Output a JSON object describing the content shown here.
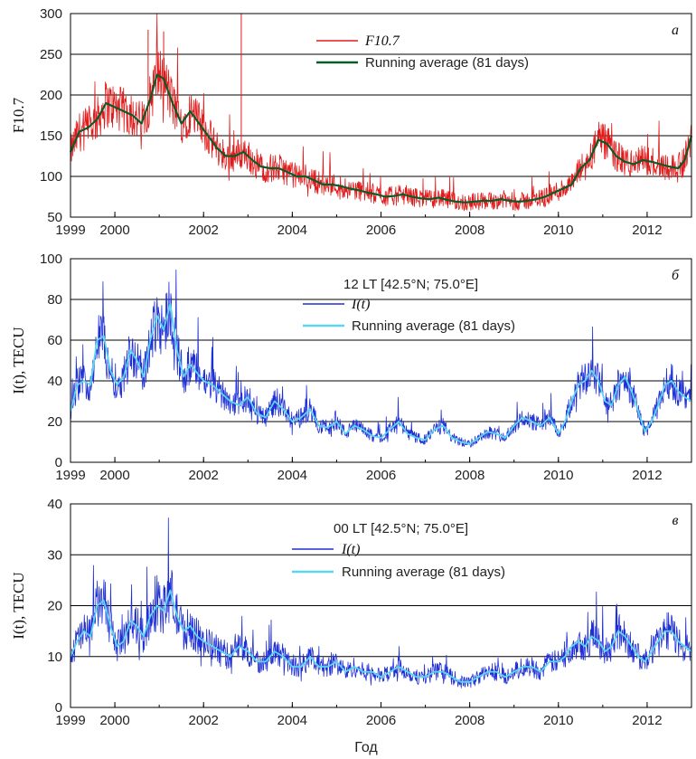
{
  "xlabel": "Год",
  "colors": {
    "f107_daily": "#e01a1a",
    "f107_avg": "#0a5a2a",
    "tec_daily": "#1f2fd6",
    "tec_avg": "#5ad6f0",
    "grid": "#000000",
    "axis": "#000000"
  },
  "chart_data": [
    {
      "type": "line",
      "panel_label": "а",
      "ylabel": "F10.7",
      "subtitle": "",
      "xlim": [
        1999,
        2013
      ],
      "ylim": [
        50,
        300
      ],
      "xticks": [
        "1999",
        "2000",
        "2002",
        "2004",
        "2006",
        "2008",
        "2010",
        "2012"
      ],
      "yticks": [
        "50",
        "100",
        "150",
        "200",
        "250",
        "300"
      ],
      "legend": [
        "F10.7",
        "Running average (81 days)"
      ],
      "legend_position": "top-center",
      "series": [
        {
          "name": "F10.7",
          "style": "daily"
        },
        {
          "name": "Running average (81 days)",
          "style": "smooth",
          "x": [
            1999.0,
            1999.2,
            1999.4,
            1999.6,
            1999.8,
            2000.0,
            2000.2,
            2000.4,
            2000.6,
            2000.8,
            2000.95,
            2001.1,
            2001.3,
            2001.5,
            2001.7,
            2001.9,
            2002.1,
            2002.3,
            2002.5,
            2002.7,
            2002.9,
            2003.1,
            2003.3,
            2003.5,
            2003.7,
            2003.9,
            2004.1,
            2004.3,
            2004.5,
            2004.7,
            2004.9,
            2005.1,
            2005.3,
            2005.5,
            2005.7,
            2005.9,
            2006.1,
            2006.3,
            2006.5,
            2006.7,
            2006.9,
            2007.1,
            2007.3,
            2007.5,
            2007.7,
            2007.9,
            2008.1,
            2008.3,
            2008.5,
            2008.7,
            2008.9,
            2009.1,
            2009.3,
            2009.5,
            2009.7,
            2009.9,
            2010.1,
            2010.3,
            2010.5,
            2010.7,
            2010.9,
            2011.1,
            2011.3,
            2011.5,
            2011.7,
            2011.9,
            2012.1,
            2012.3,
            2012.5,
            2012.7,
            2012.85,
            2013.0
          ],
          "y": [
            130,
            155,
            160,
            170,
            190,
            185,
            180,
            175,
            165,
            195,
            225,
            220,
            190,
            165,
            180,
            165,
            150,
            135,
            125,
            125,
            130,
            120,
            112,
            110,
            110,
            105,
            100,
            100,
            95,
            90,
            90,
            88,
            85,
            83,
            80,
            78,
            75,
            76,
            78,
            75,
            73,
            72,
            74,
            71,
            69,
            68,
            69,
            70,
            70,
            72,
            70,
            69,
            70,
            72,
            75,
            80,
            85,
            90,
            110,
            120,
            145,
            140,
            125,
            118,
            115,
            120,
            118,
            115,
            112,
            110,
            120,
            150
          ]
        }
      ]
    },
    {
      "type": "line",
      "panel_label": "б",
      "ylabel": "I(t), TECU",
      "subtitle": "12 LT [42.5°N; 75.0°E]",
      "xlim": [
        1999,
        2013
      ],
      "ylim": [
        0,
        100
      ],
      "xticks": [
        "1999",
        "2000",
        "2002",
        "2004",
        "2006",
        "2008",
        "2010",
        "2012"
      ],
      "yticks": [
        "0",
        "20",
        "40",
        "60",
        "80",
        "100"
      ],
      "legend": [
        "I(t)",
        "Running average (81 days)"
      ],
      "legend_position": "top-center",
      "series": [
        {
          "name": "I(t)",
          "style": "daily"
        },
        {
          "name": "Running average (81 days)",
          "style": "smooth",
          "x": [
            1999.0,
            1999.15,
            1999.3,
            1999.45,
            1999.6,
            1999.75,
            1999.9,
            2000.05,
            2000.2,
            2000.35,
            2000.5,
            2000.65,
            2000.8,
            2000.95,
            2001.1,
            2001.25,
            2001.4,
            2001.55,
            2001.7,
            2001.85,
            2002.0,
            2002.2,
            2002.4,
            2002.6,
            2002.8,
            2003.0,
            2003.2,
            2003.4,
            2003.6,
            2003.8,
            2004.0,
            2004.2,
            2004.4,
            2004.6,
            2004.8,
            2005.0,
            2005.2,
            2005.4,
            2005.6,
            2005.8,
            2006.0,
            2006.2,
            2006.4,
            2006.6,
            2006.8,
            2007.0,
            2007.2,
            2007.4,
            2007.6,
            2007.8,
            2008.0,
            2008.2,
            2008.4,
            2008.6,
            2008.8,
            2009.0,
            2009.2,
            2009.4,
            2009.6,
            2009.8,
            2010.0,
            2010.15,
            2010.3,
            2010.45,
            2010.6,
            2010.75,
            2010.9,
            2011.05,
            2011.2,
            2011.35,
            2011.5,
            2011.65,
            2011.8,
            2011.95,
            2012.1,
            2012.25,
            2012.4,
            2012.55,
            2012.7,
            2012.85,
            2013.0
          ],
          "y": [
            25,
            38,
            40,
            38,
            60,
            62,
            45,
            38,
            42,
            55,
            50,
            42,
            60,
            72,
            65,
            78,
            55,
            42,
            48,
            44,
            40,
            38,
            34,
            30,
            28,
            32,
            24,
            22,
            30,
            26,
            20,
            22,
            26,
            18,
            17,
            20,
            14,
            18,
            16,
            13,
            12,
            16,
            20,
            14,
            12,
            11,
            16,
            18,
            12,
            10,
            9,
            12,
            15,
            14,
            12,
            18,
            22,
            20,
            18,
            22,
            14,
            20,
            30,
            38,
            40,
            45,
            40,
            30,
            28,
            38,
            42,
            35,
            25,
            15,
            20,
            28,
            38,
            40,
            35,
            32,
            30
          ]
        }
      ]
    },
    {
      "type": "line",
      "panel_label": "в",
      "ylabel": "I(t), TECU",
      "subtitle": "00 LT [42.5°N; 75.0°E]",
      "xlim": [
        1999,
        2013
      ],
      "ylim": [
        0,
        40
      ],
      "xticks": [
        "1999",
        "2000",
        "2002",
        "2004",
        "2006",
        "2008",
        "2010",
        "2012"
      ],
      "yticks": [
        "0",
        "10",
        "20",
        "30",
        "40"
      ],
      "legend": [
        "I(t)",
        "Running average (81 days)"
      ],
      "legend_position": "top-center",
      "series": [
        {
          "name": "I(t)",
          "style": "daily"
        },
        {
          "name": "Running average (81 days)",
          "style": "smooth",
          "x": [
            1999.0,
            1999.15,
            1999.3,
            1999.45,
            1999.6,
            1999.75,
            1999.9,
            2000.05,
            2000.2,
            2000.35,
            2000.5,
            2000.65,
            2000.8,
            2000.95,
            2001.1,
            2001.25,
            2001.4,
            2001.55,
            2001.7,
            2001.85,
            2002.0,
            2002.2,
            2002.4,
            2002.6,
            2002.8,
            2003.0,
            2003.2,
            2003.4,
            2003.6,
            2003.8,
            2004.0,
            2004.2,
            2004.4,
            2004.6,
            2004.8,
            2005.0,
            2005.2,
            2005.4,
            2005.6,
            2005.8,
            2006.0,
            2006.2,
            2006.4,
            2006.6,
            2006.8,
            2007.0,
            2007.2,
            2007.4,
            2007.6,
            2007.8,
            2008.0,
            2008.2,
            2008.4,
            2008.6,
            2008.8,
            2009.0,
            2009.2,
            2009.4,
            2009.6,
            2009.8,
            2010.0,
            2010.15,
            2010.3,
            2010.45,
            2010.6,
            2010.75,
            2010.9,
            2011.05,
            2011.2,
            2011.35,
            2011.5,
            2011.65,
            2011.8,
            2011.95,
            2012.1,
            2012.25,
            2012.4,
            2012.55,
            2012.7,
            2012.85,
            2013.0
          ],
          "y": [
            10,
            13,
            15,
            14,
            20,
            21,
            16,
            12,
            13,
            17,
            16,
            14,
            18,
            20,
            19,
            23,
            18,
            15,
            16,
            14,
            13,
            12,
            11,
            10,
            12,
            11,
            9,
            9,
            11,
            10,
            8,
            8,
            10,
            8,
            8,
            9,
            7,
            8,
            7,
            7,
            6,
            7,
            8,
            7,
            6,
            6,
            7,
            7,
            6,
            5,
            5,
            6,
            7,
            7,
            6,
            7,
            8,
            8,
            7,
            9,
            9,
            10,
            12,
            13,
            12,
            14,
            13,
            11,
            12,
            15,
            14,
            12,
            10,
            9,
            11,
            13,
            15,
            15,
            13,
            12,
            11
          ]
        }
      ]
    }
  ]
}
